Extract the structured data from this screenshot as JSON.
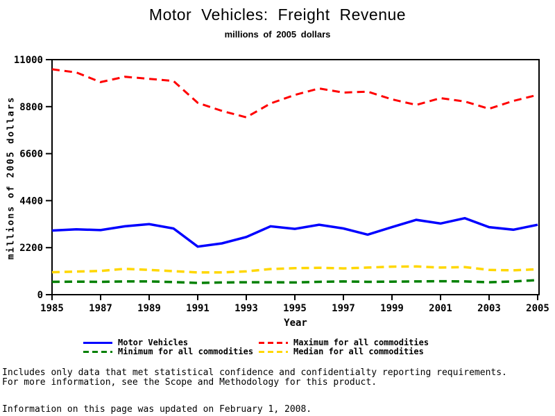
{
  "page": {
    "title": "Motor Vehicles: Freight Revenue",
    "subtitle": "millions of 2005 dollars",
    "footer_line1": "Includes only data that met statistical confidence and confidentialty reporting requirements.",
    "footer_line2": "For more information, see the Scope and Methodology for this product.",
    "updated_line": "Information on this page was updated on February 1, 2008."
  },
  "chart_data": {
    "type": "line",
    "title": "Motor Vehicles: Freight Revenue",
    "subtitle": "millions of 2005 dollars",
    "xlabel": "Year",
    "ylabel": "millions of 2005 dollars",
    "xlim": [
      1985,
      2005
    ],
    "ylim": [
      0,
      11000
    ],
    "xticks": [
      1985,
      1987,
      1989,
      1991,
      1993,
      1995,
      1997,
      1999,
      2001,
      2003,
      2005
    ],
    "yticks": [
      0,
      2200,
      4400,
      6600,
      8800,
      11000
    ],
    "grid": false,
    "legend_position": "bottom",
    "x": [
      1985,
      1986,
      1987,
      1988,
      1989,
      1990,
      1991,
      1992,
      1993,
      1994,
      1995,
      1996,
      1997,
      1998,
      1999,
      2000,
      2001,
      2002,
      2003,
      2004,
      2005
    ],
    "series": [
      {
        "name": "Maximum for all commodities",
        "color": "#ff0000",
        "style": "dashed",
        "width": 3,
        "values": [
          10550,
          10400,
          9950,
          10200,
          10100,
          10000,
          8980,
          8600,
          8300,
          8950,
          9350,
          9650,
          9460,
          9500,
          9140,
          8880,
          9200,
          9040,
          8700,
          9070,
          9350
        ]
      },
      {
        "name": "Motor Vehicles",
        "color": "#0000ff",
        "style": "solid",
        "width": 3.5,
        "values": [
          3000,
          3060,
          3020,
          3200,
          3300,
          3100,
          2250,
          2400,
          2700,
          3200,
          3080,
          3270,
          3100,
          2810,
          3160,
          3500,
          3330,
          3580,
          3160,
          3040,
          3270
        ]
      },
      {
        "name": "Median for all commodities",
        "color": "#ffd700",
        "style": "dashed",
        "width": 3.5,
        "values": [
          1050,
          1080,
          1110,
          1210,
          1160,
          1100,
          1040,
          1040,
          1090,
          1200,
          1240,
          1260,
          1230,
          1270,
          1310,
          1320,
          1270,
          1290,
          1160,
          1140,
          1190
        ]
      },
      {
        "name": "Minimum for all commodities",
        "color": "#008000",
        "style": "dashed",
        "width": 3.5,
        "values": [
          600,
          610,
          600,
          620,
          620,
          590,
          550,
          570,
          580,
          580,
          570,
          600,
          620,
          600,
          610,
          620,
          630,
          620,
          580,
          620,
          680
        ]
      }
    ]
  },
  "legend": {
    "items": [
      {
        "label": "Motor Vehicles",
        "color": "#0000ff",
        "style": "solid"
      },
      {
        "label": "Maximum for all commodities",
        "color": "#ff0000",
        "style": "dashed"
      },
      {
        "label": "Minimum for all commodities",
        "color": "#008000",
        "style": "dashed"
      },
      {
        "label": "Median for all commodities",
        "color": "#ffd700",
        "style": "dashed"
      }
    ]
  }
}
